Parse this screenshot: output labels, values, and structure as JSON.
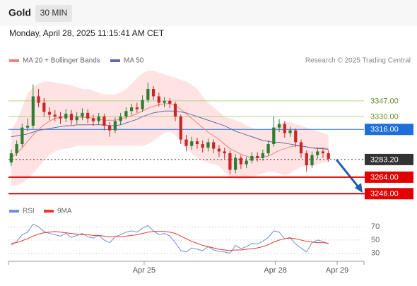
{
  "chart_data": {
    "type": "candlestick",
    "title": "Gold",
    "timeframe": "30 MIN",
    "date": "Monday, April 28, 2025 11:15:41 AM CET",
    "credit": "Research © 2025 Trading Central",
    "xlim": [
      0,
      65
    ],
    "xticks": [
      {
        "value": 24.8,
        "label": "Apr 25"
      },
      {
        "value": 48.8,
        "label": "Apr 28"
      },
      {
        "value": 60.1,
        "label": "Apr 29"
      }
    ],
    "ylim": [
      3237,
      3380
    ],
    "up_color": "#2e7d32",
    "down_color": "#c62828",
    "open": [
      3280,
      3290,
      3300,
      3318,
      3320,
      3352,
      3345,
      3335,
      3332,
      3330,
      3328,
      3333,
      3326,
      3330,
      3334,
      3328,
      3325,
      3330,
      3320,
      3315,
      3325,
      3330,
      3336,
      3340,
      3338,
      3348,
      3360,
      3352,
      3345,
      3347,
      3344,
      3330,
      3305,
      3298,
      3303,
      3300,
      3296,
      3302,
      3295,
      3292,
      3290,
      3272,
      3285,
      3278,
      3282,
      3287,
      3285,
      3290,
      3300,
      3318,
      3322,
      3312,
      3315,
      3302,
      3290,
      3277,
      3288,
      3292,
      3290
    ],
    "high": [
      3294,
      3304,
      3322,
      3328,
      3365,
      3360,
      3350,
      3340,
      3337,
      3335,
      3338,
      3337,
      3335,
      3339,
      3338,
      3332,
      3334,
      3333,
      3324,
      3329,
      3334,
      3340,
      3344,
      3345,
      3353,
      3367,
      3363,
      3356,
      3351,
      3350,
      3346,
      3332,
      3310,
      3308,
      3307,
      3304,
      3306,
      3305,
      3299,
      3296,
      3293,
      3289,
      3288,
      3286,
      3291,
      3291,
      3294,
      3304,
      3330,
      3327,
      3325,
      3319,
      3317,
      3305,
      3293,
      3292,
      3296,
      3295,
      3293
    ],
    "low": [
      3276,
      3287,
      3297,
      3314,
      3317,
      3340,
      3330,
      3326,
      3325,
      3322,
      3324,
      3321,
      3322,
      3326,
      3323,
      3320,
      3321,
      3315,
      3308,
      3312,
      3321,
      3327,
      3332,
      3334,
      3335,
      3345,
      3348,
      3341,
      3340,
      3339,
      3325,
      3300,
      3292,
      3294,
      3295,
      3291,
      3292,
      3290,
      3286,
      3284,
      3267,
      3268,
      3273,
      3274,
      3279,
      3281,
      3282,
      3287,
      3297,
      3313,
      3307,
      3308,
      3297,
      3285,
      3270,
      3274,
      3284,
      3285,
      3281
    ],
    "close": [
      3290,
      3300,
      3318,
      3320,
      3352,
      3345,
      3335,
      3332,
      3330,
      3328,
      3333,
      3326,
      3330,
      3334,
      3328,
      3325,
      3330,
      3320,
      3315,
      3325,
      3330,
      3336,
      3340,
      3338,
      3348,
      3360,
      3352,
      3345,
      3347,
      3344,
      3330,
      3305,
      3298,
      3303,
      3300,
      3296,
      3302,
      3295,
      3292,
      3290,
      3272,
      3285,
      3278,
      3282,
      3287,
      3285,
      3290,
      3300,
      3318,
      3322,
      3312,
      3315,
      3302,
      3290,
      3277,
      3288,
      3292,
      3290,
      3284
    ],
    "series": [
      {
        "name": "MA 20 + Bollinger Bands",
        "color": "#f08080",
        "band_color": "#ffe3e3",
        "values": [
          3285,
          3290,
          3296,
          3303,
          3310,
          3316,
          3321,
          3325,
          3328,
          3329,
          3330,
          3330,
          3330,
          3329,
          3329,
          3328,
          3327,
          3326,
          3326,
          3326,
          3327,
          3329,
          3331,
          3333,
          3336,
          3339,
          3341,
          3343,
          3344,
          3344,
          3342,
          3338,
          3333,
          3328,
          3323,
          3318,
          3313,
          3309,
          3305,
          3300,
          3295,
          3292,
          3289,
          3287,
          3285,
          3285,
          3286,
          3287,
          3290,
          3293,
          3295,
          3297,
          3298,
          3298,
          3297,
          3296,
          3296,
          3296,
          3295
        ],
        "upper": [
          3315,
          3325,
          3340,
          3355,
          3362,
          3366,
          3368,
          3368,
          3367,
          3366,
          3365,
          3364,
          3362,
          3360,
          3360,
          3358,
          3356,
          3354,
          3354,
          3354,
          3356,
          3360,
          3366,
          3372,
          3377,
          3380,
          3380,
          3378,
          3376,
          3374,
          3372,
          3370,
          3368,
          3365,
          3360,
          3352,
          3345,
          3340,
          3335,
          3330,
          3328,
          3326,
          3324,
          3320,
          3318,
          3316,
          3316,
          3316,
          3318,
          3322,
          3324,
          3324,
          3322,
          3320,
          3318,
          3316,
          3314,
          3312,
          3310
        ],
        "lower": [
          3255,
          3255,
          3258,
          3262,
          3268,
          3275,
          3282,
          3288,
          3292,
          3294,
          3295,
          3296,
          3298,
          3298,
          3298,
          3298,
          3298,
          3298,
          3298,
          3298,
          3298,
          3298,
          3298,
          3298,
          3298,
          3300,
          3304,
          3308,
          3312,
          3314,
          3310,
          3302,
          3295,
          3290,
          3285,
          3282,
          3280,
          3278,
          3276,
          3270,
          3264,
          3262,
          3262,
          3262,
          3264,
          3266,
          3268,
          3270,
          3270,
          3268,
          3266,
          3268,
          3272,
          3275,
          3276,
          3276,
          3278,
          3280,
          3280
        ]
      },
      {
        "name": "MA 50",
        "color": "#5c6bb0",
        "values": [
          3308,
          3309,
          3310,
          3311,
          3313,
          3315,
          3316,
          3317,
          3318,
          3319,
          3320,
          3320,
          3321,
          3321,
          3321,
          3321,
          3321,
          3321,
          3320,
          3320,
          3321,
          3323,
          3325,
          3327,
          3330,
          3332,
          3334,
          3335,
          3336,
          3336,
          3336,
          3335,
          3334,
          3332,
          3330,
          3328,
          3326,
          3324,
          3322,
          3320,
          3317,
          3314,
          3312,
          3310,
          3308,
          3306,
          3304,
          3303,
          3302,
          3302,
          3301,
          3300,
          3299,
          3298,
          3297,
          3296,
          3295,
          3295,
          3294
        ]
      }
    ],
    "levels": [
      {
        "value": 3347,
        "label": "3347.00",
        "color": "#9ccc65",
        "style": "solid",
        "boxed": false
      },
      {
        "value": 3330,
        "label": "3330.00",
        "color": "#9ccc65",
        "style": "solid",
        "boxed": false
      },
      {
        "value": 3316,
        "label": "3316.00",
        "color": "#1e6fd9",
        "style": "solid",
        "boxed": true
      },
      {
        "value": 3283.2,
        "label": "3283.20",
        "color": "#333333",
        "style": "dotted",
        "boxed": true
      },
      {
        "value": 3264,
        "label": "3264.00",
        "color": "#e00000",
        "style": "solid",
        "boxed": true
      },
      {
        "value": 3246,
        "label": "3246.00",
        "color": "#e00000",
        "style": "solid",
        "boxed": true
      }
    ],
    "rsi": {
      "type": "line",
      "ylim": [
        20,
        82
      ],
      "yticks": [
        70,
        50,
        30
      ],
      "series": [
        {
          "name": "RSI",
          "color": "#6f8fdc",
          "values": [
            42,
            48,
            58,
            62,
            74,
            70,
            63,
            60,
            58,
            56,
            60,
            54,
            57,
            60,
            55,
            53,
            57,
            50,
            46,
            55,
            58,
            62,
            64,
            62,
            68,
            72,
            64,
            58,
            60,
            56,
            46,
            34,
            32,
            38,
            36,
            34,
            40,
            35,
            33,
            32,
            30,
            42,
            37,
            40,
            45,
            44,
            48,
            54,
            64,
            62,
            52,
            54,
            44,
            38,
            32,
            46,
            50,
            48,
            44
          ]
        },
        {
          "name": "9MA",
          "color": "#e53935",
          "values": [
            45,
            46,
            49,
            52,
            56,
            59,
            61,
            62,
            63,
            62,
            61,
            60,
            59,
            58,
            58,
            57,
            57,
            56,
            55,
            55,
            55,
            56,
            57,
            58,
            60,
            62,
            63,
            63,
            63,
            62,
            60,
            56,
            52,
            48,
            45,
            42,
            40,
            38,
            36,
            35,
            34,
            35,
            35,
            36,
            37,
            38,
            40,
            43,
            47,
            50,
            52,
            53,
            52,
            50,
            48,
            47,
            46,
            46,
            45
          ]
        }
      ]
    }
  }
}
